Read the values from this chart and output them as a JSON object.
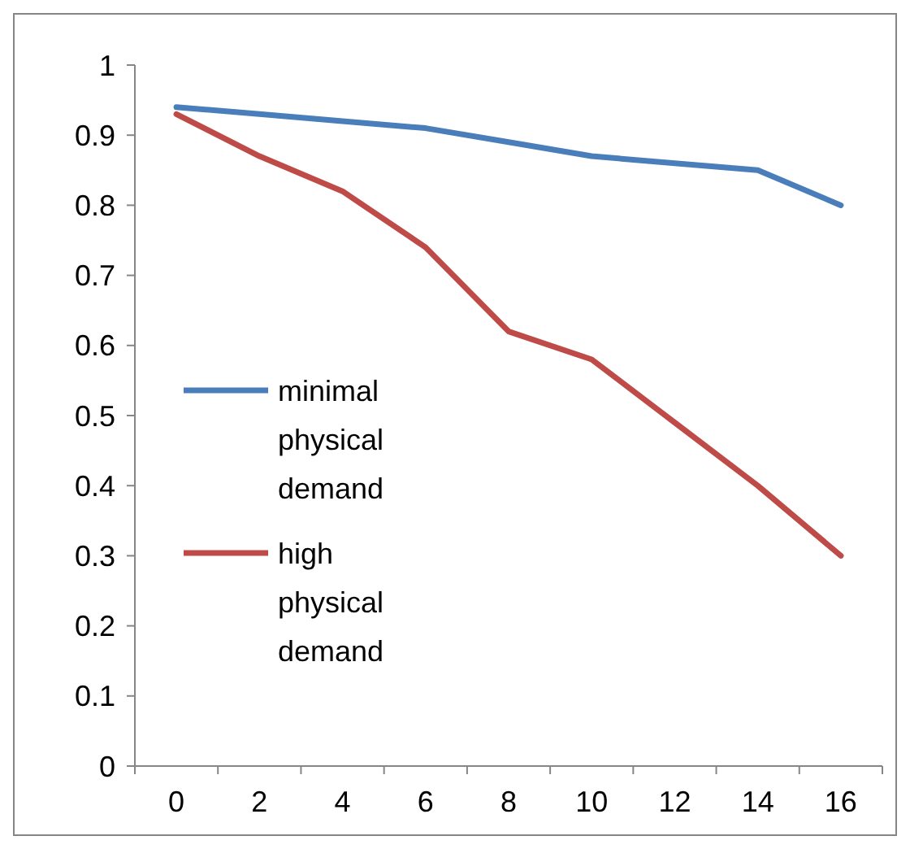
{
  "chart_data": {
    "type": "line",
    "categories": [
      "0",
      "2",
      "4",
      "6",
      "8",
      "10",
      "12",
      "14",
      "16"
    ],
    "series": [
      {
        "name": "minimal physical demand",
        "color": "#4a7ebb",
        "values": [
          0.94,
          0.93,
          0.92,
          0.91,
          0.89,
          0.87,
          0.86,
          0.85,
          0.8
        ]
      },
      {
        "name": "high physical demand",
        "color": "#be4b48",
        "values": [
          0.93,
          0.87,
          0.82,
          0.74,
          0.62,
          0.58,
          0.49,
          0.4,
          0.3
        ]
      }
    ],
    "ylim": [
      0,
      1
    ],
    "yticks": [
      0,
      0.1,
      0.2,
      0.3,
      0.4,
      0.5,
      0.6,
      0.7,
      0.8,
      0.9,
      1
    ],
    "grid": false,
    "legend": "left",
    "marker": "none",
    "line_style": "solid"
  }
}
